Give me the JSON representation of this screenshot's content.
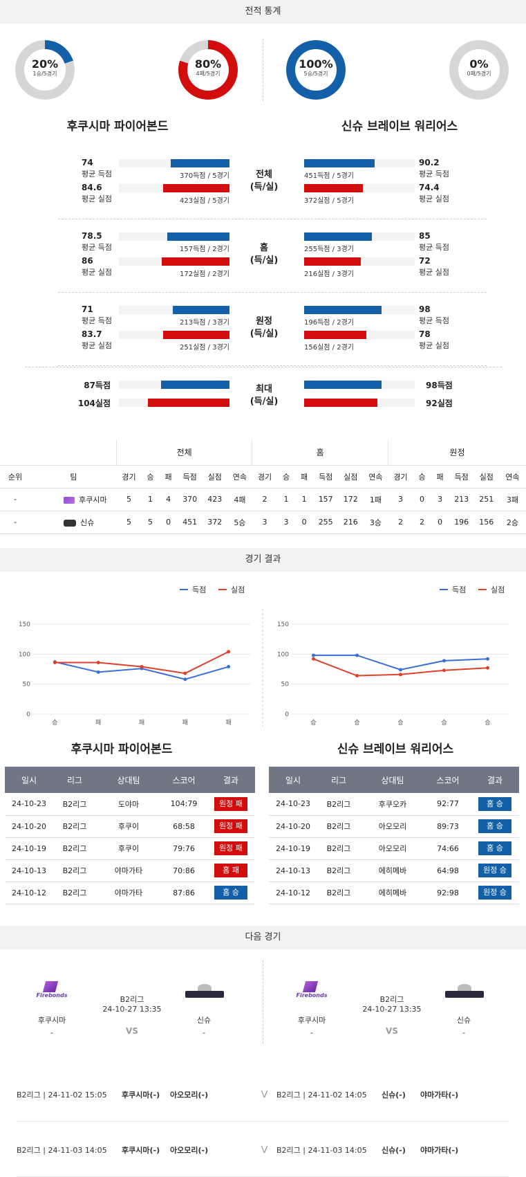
{
  "sections": {
    "stats": "전적 통계",
    "results": "경기 결과",
    "next": "다음 경기"
  },
  "colors": {
    "blue": "#1460a8",
    "red": "#d20d0d",
    "gray": "#d6d6d6"
  },
  "donuts": [
    {
      "pct_text": "20%",
      "sub": "1승/5경기",
      "value": 0.2,
      "color": "#1460a8"
    },
    {
      "pct_text": "80%",
      "sub": "4패/5경기",
      "value": 0.8,
      "color": "#d20d0d"
    },
    {
      "pct_text": "100%",
      "sub": "5승/5경기",
      "value": 1.0,
      "color": "#1460a8"
    },
    {
      "pct_text": "0%",
      "sub": "0패/5경기",
      "value": 0.0,
      "color": "#d20d0d"
    }
  ],
  "teams": {
    "home": "후쿠시마 파이어본드",
    "away": "신슈 브레이브 워리어스",
    "home_short": "후쿠시마",
    "away_short": "신슈"
  },
  "stat_groups": [
    {
      "cat1": "전체",
      "cat2": "(득/실)",
      "rows": [
        {
          "lv": "74",
          "ll": "평균 득점",
          "lb": "370득점 / 5경기",
          "lw": 0.53,
          "lc": "blue",
          "rv": "90.2",
          "rl": "평균 득점",
          "rb": "451득점 / 5경기",
          "rw": 0.64,
          "rc": "blue"
        },
        {
          "lv": "84.6",
          "ll": "평균 실점",
          "lb": "423실점 / 5경기",
          "lw": 0.6,
          "lc": "red",
          "rv": "74.4",
          "rl": "평균 실점",
          "rb": "372실점 / 5경기",
          "rw": 0.53,
          "rc": "red"
        }
      ]
    },
    {
      "cat1": "홈",
      "cat2": "(득/실)",
      "rows": [
        {
          "lv": "78.5",
          "ll": "평균 득점",
          "lb": "157득점 / 2경기",
          "lw": 0.56,
          "lc": "blue",
          "rv": "85",
          "rl": "평균 득점",
          "rb": "255득점 / 3경기",
          "rw": 0.61,
          "rc": "blue"
        },
        {
          "lv": "86",
          "ll": "평균 실점",
          "lb": "172실점 / 2경기",
          "lw": 0.61,
          "lc": "red",
          "rv": "72",
          "rl": "평균 실점",
          "rb": "216실점 / 3경기",
          "rw": 0.51,
          "rc": "red"
        }
      ]
    },
    {
      "cat1": "원정",
      "cat2": "(득/실)",
      "rows": [
        {
          "lv": "71",
          "ll": "평균 득점",
          "lb": "213득점 / 3경기",
          "lw": 0.51,
          "lc": "blue",
          "rv": "98",
          "rl": "평균 득점",
          "rb": "196득점 / 2경기",
          "rw": 0.7,
          "rc": "blue"
        },
        {
          "lv": "83.7",
          "ll": "평균 실점",
          "lb": "251실점 / 3경기",
          "lw": 0.6,
          "lc": "red",
          "rv": "78",
          "rl": "평균 실점",
          "rb": "156실점 / 2경기",
          "rw": 0.56,
          "rc": "red"
        }
      ]
    }
  ],
  "max_group": {
    "cat1": "최대",
    "cat2": "(득/실)",
    "rows": [
      {
        "lv": "87득점",
        "lw": 0.62,
        "lc": "blue",
        "rv": "98득점",
        "rw": 0.7,
        "rc": "blue"
      },
      {
        "lv": "104실점",
        "lw": 0.74,
        "lc": "red",
        "rv": "92실점",
        "rw": 0.66,
        "rc": "red"
      }
    ]
  },
  "standings": {
    "groups": [
      "전체",
      "홈",
      "원정"
    ],
    "headers": [
      "순위",
      "팀",
      "경기",
      "승",
      "패",
      "득점",
      "실점",
      "연속",
      "경기",
      "승",
      "패",
      "득점",
      "실점",
      "연속",
      "경기",
      "승",
      "패",
      "득점",
      "실점",
      "연속"
    ],
    "rows": [
      [
        "-",
        "후쿠시마",
        "5",
        "1",
        "4",
        "370",
        "423",
        "4패",
        "2",
        "1",
        "1",
        "157",
        "172",
        "1패",
        "3",
        "0",
        "3",
        "213",
        "251",
        "3패"
      ],
      [
        "-",
        "신슈",
        "5",
        "5",
        "0",
        "451",
        "372",
        "5승",
        "3",
        "3",
        "0",
        "255",
        "216",
        "3승",
        "2",
        "2",
        "0",
        "196",
        "156",
        "2승"
      ]
    ]
  },
  "charts_legend": {
    "scored": "득점",
    "conceded": "실점"
  },
  "chart_data": [
    {
      "type": "line",
      "categories": [
        "승",
        "패",
        "패",
        "패",
        "패"
      ],
      "ylim": [
        0,
        150
      ],
      "yticks": [
        0,
        50,
        100,
        150
      ],
      "series": [
        {
          "name": "득점",
          "values": [
            87,
            70,
            76,
            58,
            79
          ],
          "color": "#3a6fd8"
        },
        {
          "name": "실점",
          "values": [
            86,
            86,
            79,
            68,
            104
          ],
          "color": "#e0402a"
        }
      ]
    },
    {
      "type": "line",
      "categories": [
        "승",
        "승",
        "승",
        "승",
        "승"
      ],
      "ylim": [
        0,
        150
      ],
      "yticks": [
        0,
        50,
        100,
        150
      ],
      "series": [
        {
          "name": "득점",
          "values": [
            98,
            98,
            74,
            89,
            92
          ],
          "color": "#3a6fd8"
        },
        {
          "name": "실점",
          "values": [
            92,
            64,
            66,
            73,
            77
          ],
          "color": "#e0402a"
        }
      ]
    }
  ],
  "results_headers": [
    "일시",
    "리그",
    "상대팀",
    "스코어",
    "결과"
  ],
  "results_left": [
    [
      "24-10-23",
      "B2리그",
      "도야마",
      "104:79",
      "원정 패",
      "red"
    ],
    [
      "24-10-20",
      "B2리그",
      "후쿠이",
      "68:58",
      "원정 패",
      "red"
    ],
    [
      "24-10-19",
      "B2리그",
      "후쿠이",
      "79:76",
      "원정 패",
      "red"
    ],
    [
      "24-10-13",
      "B2리그",
      "야마가타",
      "70:86",
      "홈 패",
      "red"
    ],
    [
      "24-10-12",
      "B2리그",
      "야마가타",
      "87:86",
      "홈 승",
      "blue"
    ]
  ],
  "results_right": [
    [
      "24-10-23",
      "B2리그",
      "후쿠오카",
      "92:77",
      "홈 승",
      "blue"
    ],
    [
      "24-10-20",
      "B2리그",
      "아오모리",
      "89:73",
      "홈 승",
      "blue"
    ],
    [
      "24-10-19",
      "B2리그",
      "아오모리",
      "74:66",
      "홈 승",
      "blue"
    ],
    [
      "24-10-13",
      "B2리그",
      "에히메바",
      "64:98",
      "원정 승",
      "blue"
    ],
    [
      "24-10-12",
      "B2리그",
      "에히메바",
      "92:98",
      "원정 승",
      "blue"
    ]
  ],
  "next_match": {
    "league": "B2리그",
    "datetime": "24-10-27 13:35",
    "home": "후쿠시마",
    "away": "신슈",
    "home_rank": "-",
    "away_rank": "-",
    "vs": "VS",
    "logo_text": "Firebonds"
  },
  "upcoming": [
    {
      "left": {
        "info": "B2리그 | 24-11-02 15:05",
        "team": "후쿠시마(-)",
        "opp": "아오모리(-)"
      },
      "right": {
        "info": "B2리그 | 24-11-02 14:05",
        "team": "신슈(-)",
        "opp": "야마가타(-)"
      }
    },
    {
      "left": {
        "info": "B2리그 | 24-11-03 14:05",
        "team": "후쿠시마(-)",
        "opp": "아오모리(-)"
      },
      "right": {
        "info": "B2리그 | 24-11-03 14:05",
        "team": "신슈(-)",
        "opp": "야마가타(-)"
      }
    }
  ]
}
